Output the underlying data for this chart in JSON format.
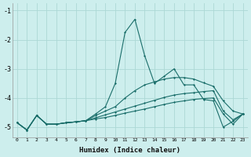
{
  "xlabel": "Humidex (Indice chaleur)",
  "ylabel": "",
  "bg_color": "#cdeeed",
  "grid_color": "#acd8d5",
  "line_color": "#1a6e6a",
  "xlim": [
    -0.5,
    23.5
  ],
  "ylim": [
    -5.35,
    -0.75
  ],
  "yticks": [
    -5,
    -4,
    -3,
    -2,
    -1
  ],
  "xticks": [
    0,
    1,
    2,
    3,
    4,
    5,
    6,
    7,
    8,
    9,
    10,
    11,
    12,
    13,
    14,
    15,
    16,
    17,
    18,
    19,
    20,
    21,
    22,
    23
  ],
  "line1_x": [
    0,
    1,
    2,
    3,
    4,
    5,
    6,
    7,
    8,
    9,
    10,
    11,
    12,
    13,
    14,
    15,
    16,
    17,
    18,
    19,
    20,
    21,
    22,
    23
  ],
  "line1_y": [
    -4.85,
    -5.1,
    -4.6,
    -4.9,
    -4.9,
    -4.85,
    -4.82,
    -4.78,
    -4.55,
    -4.3,
    -3.5,
    -1.75,
    -1.3,
    -2.55,
    -3.5,
    -3.25,
    -3.0,
    -3.55,
    -3.55,
    -4.05,
    -4.1,
    -5.0,
    -4.8,
    -4.55
  ],
  "line2_x": [
    0,
    1,
    2,
    3,
    4,
    5,
    6,
    7,
    8,
    9,
    10,
    11,
    12,
    13,
    14,
    15,
    16,
    17,
    18,
    19,
    20,
    21,
    22,
    23
  ],
  "line2_y": [
    -4.85,
    -5.1,
    -4.6,
    -4.9,
    -4.9,
    -4.85,
    -4.82,
    -4.78,
    -4.6,
    -4.45,
    -4.3,
    -4.0,
    -3.75,
    -3.55,
    -3.45,
    -3.35,
    -3.3,
    -3.3,
    -3.35,
    -3.48,
    -3.6,
    -4.1,
    -4.45,
    -4.55
  ],
  "line3_x": [
    0,
    1,
    2,
    3,
    4,
    5,
    6,
    7,
    8,
    9,
    10,
    11,
    12,
    13,
    14,
    15,
    16,
    17,
    18,
    19,
    20,
    21,
    22,
    23
  ],
  "line3_y": [
    -4.85,
    -5.1,
    -4.6,
    -4.9,
    -4.9,
    -4.85,
    -4.82,
    -4.78,
    -4.68,
    -4.58,
    -4.48,
    -4.38,
    -4.28,
    -4.18,
    -4.08,
    -3.98,
    -3.9,
    -3.85,
    -3.82,
    -3.78,
    -3.75,
    -4.45,
    -4.75,
    -4.55
  ],
  "line4_x": [
    0,
    1,
    2,
    3,
    4,
    5,
    6,
    7,
    8,
    9,
    10,
    11,
    12,
    13,
    14,
    15,
    16,
    17,
    18,
    19,
    20,
    21,
    22,
    23
  ],
  "line4_y": [
    -4.85,
    -5.1,
    -4.6,
    -4.9,
    -4.9,
    -4.85,
    -4.82,
    -4.78,
    -4.72,
    -4.67,
    -4.6,
    -4.52,
    -4.45,
    -4.38,
    -4.3,
    -4.22,
    -4.15,
    -4.1,
    -4.05,
    -4.02,
    -4.0,
    -4.55,
    -4.9,
    -4.55
  ]
}
